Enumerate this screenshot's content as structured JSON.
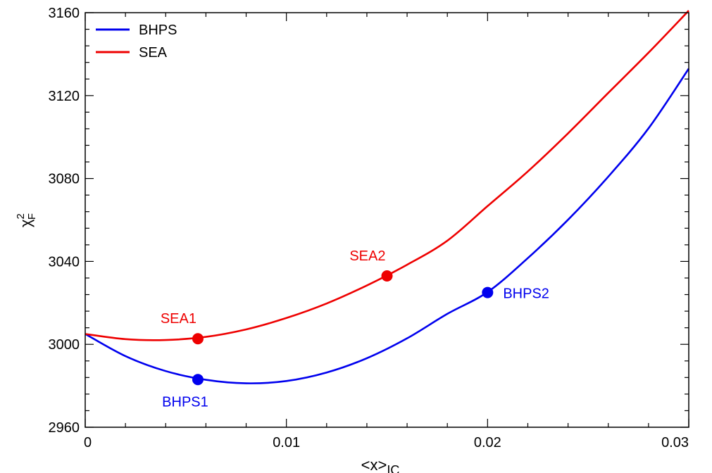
{
  "chart_data": {
    "type": "line",
    "title": "",
    "xlabel": "<x>",
    "xlabel_sub": "IC",
    "ylabel": "χ",
    "ylabel_sup": "2",
    "ylabel_sub": "F",
    "xlim": [
      0,
      0.03
    ],
    "ylim": [
      2960,
      3160
    ],
    "x_ticks": [
      0,
      0.01,
      0.02,
      0.03
    ],
    "x_tick_labels": [
      "0",
      "0.01",
      "0.02",
      "0.03"
    ],
    "y_ticks": [
      2960,
      3000,
      3040,
      3080,
      3120,
      3160
    ],
    "y_tick_labels": [
      "2960",
      "3000",
      "3040",
      "3080",
      "3120",
      "3160"
    ],
    "grid": false,
    "legend_position": "top-left",
    "series": [
      {
        "name": "BHPS",
        "color": "#0000ee",
        "x": [
          0,
          0.002,
          0.004,
          0.006,
          0.008,
          0.01,
          0.012,
          0.014,
          0.016,
          0.018,
          0.02,
          0.022,
          0.024,
          0.026,
          0.028,
          0.03
        ],
        "y": [
          3005,
          2994.3,
          2987.1,
          2982.9,
          2981.2,
          2982.3,
          2986.4,
          2993.3,
          3002.9,
          3014.7,
          3025.2,
          3041.6,
          3060.1,
          3080.9,
          3104.2,
          3133
        ]
      },
      {
        "name": "SEA",
        "color": "#ee0000",
        "x": [
          0,
          0.002,
          0.004,
          0.006,
          0.008,
          0.01,
          0.012,
          0.014,
          0.016,
          0.018,
          0.02,
          0.022,
          0.024,
          0.026,
          0.028,
          0.03
        ],
        "y": [
          3005,
          3002.5,
          3002.1,
          3003.6,
          3007.2,
          3012.7,
          3019.7,
          3028.4,
          3038.4,
          3050,
          3066.7,
          3083.4,
          3101.8,
          3121.3,
          3140.7,
          3161
        ]
      }
    ],
    "points": [
      {
        "label": "SEA1",
        "x": 0.0056,
        "y": 3002.7,
        "color": "#ee0000",
        "label_pos": "above-left"
      },
      {
        "label": "SEA2",
        "x": 0.015,
        "y": 3033,
        "color": "#ee0000",
        "label_pos": "above-left"
      },
      {
        "label": "BHPS1",
        "x": 0.0056,
        "y": 2983,
        "color": "#0000ee",
        "label_pos": "below-left"
      },
      {
        "label": "BHPS2",
        "x": 0.02,
        "y": 3025,
        "color": "#0000ee",
        "label_pos": "right"
      }
    ]
  }
}
